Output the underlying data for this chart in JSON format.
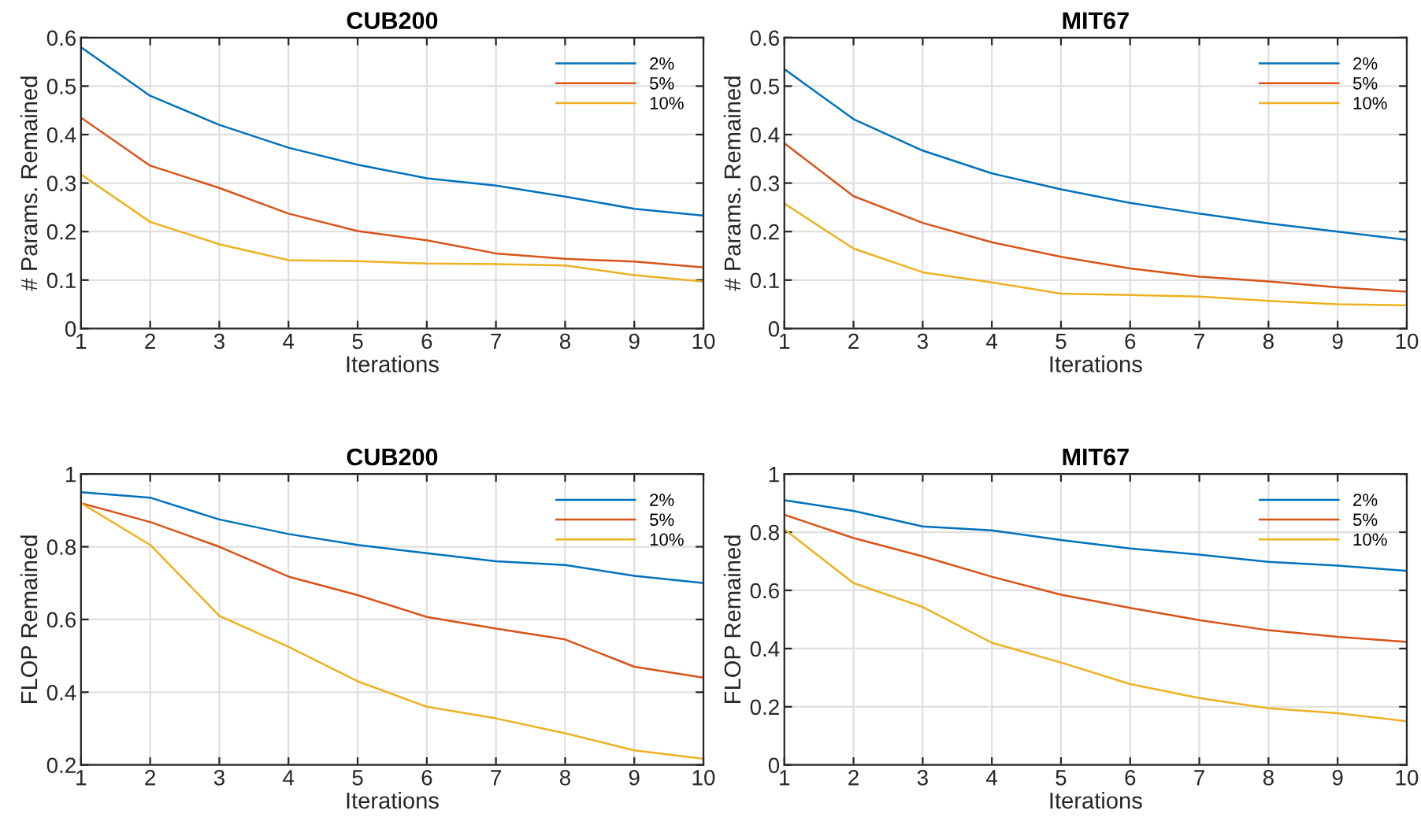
{
  "chart_data": [
    {
      "type": "line",
      "title": "CUB200",
      "xlabel": "Iterations",
      "ylabel": "# Params. Remained",
      "x": [
        1,
        2,
        3,
        4,
        5,
        6,
        7,
        8,
        9,
        10
      ],
      "xlim": [
        1,
        10
      ],
      "xticks": [
        1,
        2,
        3,
        4,
        5,
        6,
        7,
        8,
        9,
        10
      ],
      "ylim": [
        0,
        0.6
      ],
      "yticks": [
        0,
        0.1,
        0.2,
        0.3,
        0.4,
        0.5,
        0.6
      ],
      "grid": true,
      "legend": "top right",
      "series": [
        {
          "name": "2%",
          "color": "#0072bd",
          "values": [
            0.58,
            0.48,
            0.42,
            0.373,
            0.338,
            0.31,
            0.295,
            0.272,
            0.247,
            0.233
          ]
        },
        {
          "name": "5%",
          "color": "#d95319",
          "values": [
            0.435,
            0.336,
            0.29,
            0.237,
            0.201,
            0.182,
            0.155,
            0.144,
            0.138,
            0.126
          ]
        },
        {
          "name": "10%",
          "color": "#edb120",
          "values": [
            0.318,
            0.22,
            0.174,
            0.141,
            0.139,
            0.134,
            0.133,
            0.13,
            0.11,
            0.097
          ]
        }
      ]
    },
    {
      "type": "line",
      "title": "MIT67",
      "xlabel": "Iterations",
      "ylabel": "# Params. Remained",
      "x": [
        1,
        2,
        3,
        4,
        5,
        6,
        7,
        8,
        9,
        10
      ],
      "xlim": [
        1,
        10
      ],
      "xticks": [
        1,
        2,
        3,
        4,
        5,
        6,
        7,
        8,
        9,
        10
      ],
      "ylim": [
        0,
        0.6
      ],
      "yticks": [
        0,
        0.1,
        0.2,
        0.3,
        0.4,
        0.5,
        0.6
      ],
      "grid": true,
      "legend": "top right",
      "series": [
        {
          "name": "2%",
          "color": "#0072bd",
          "values": [
            0.535,
            0.432,
            0.367,
            0.32,
            0.287,
            0.259,
            0.237,
            0.217,
            0.2,
            0.183
          ]
        },
        {
          "name": "5%",
          "color": "#d95319",
          "values": [
            0.382,
            0.273,
            0.218,
            0.178,
            0.148,
            0.124,
            0.107,
            0.097,
            0.085,
            0.076
          ]
        },
        {
          "name": "10%",
          "color": "#edb120",
          "values": [
            0.258,
            0.165,
            0.116,
            0.095,
            0.072,
            0.069,
            0.066,
            0.057,
            0.05,
            0.048
          ]
        }
      ]
    },
    {
      "type": "line",
      "title": "CUB200",
      "xlabel": "Iterations",
      "ylabel": "FLOP Remained",
      "x": [
        1,
        2,
        3,
        4,
        5,
        6,
        7,
        8,
        9,
        10
      ],
      "xlim": [
        1,
        10
      ],
      "xticks": [
        1,
        2,
        3,
        4,
        5,
        6,
        7,
        8,
        9,
        10
      ],
      "ylim": [
        0.2,
        1
      ],
      "yticks": [
        0.2,
        0.4,
        0.6,
        0.8,
        1
      ],
      "grid": true,
      "legend": "top right",
      "series": [
        {
          "name": "2%",
          "color": "#0072bd",
          "values": [
            0.95,
            0.935,
            0.875,
            0.835,
            0.805,
            0.782,
            0.76,
            0.75,
            0.72,
            0.7
          ]
        },
        {
          "name": "5%",
          "color": "#d95319",
          "values": [
            0.92,
            0.868,
            0.8,
            0.718,
            0.667,
            0.607,
            0.575,
            0.545,
            0.47,
            0.44
          ]
        },
        {
          "name": "10%",
          "color": "#edb120",
          "values": [
            0.92,
            0.805,
            0.61,
            0.525,
            0.43,
            0.36,
            0.328,
            0.287,
            0.24,
            0.217
          ]
        }
      ]
    },
    {
      "type": "line",
      "title": "MIT67",
      "xlabel": "Iterations",
      "ylabel": "FLOP Remained",
      "x": [
        1,
        2,
        3,
        4,
        5,
        6,
        7,
        8,
        9,
        10
      ],
      "xlim": [
        1,
        10
      ],
      "xticks": [
        1,
        2,
        3,
        4,
        5,
        6,
        7,
        8,
        9,
        10
      ],
      "ylim": [
        0,
        1
      ],
      "yticks": [
        0,
        0.2,
        0.4,
        0.6,
        0.8,
        1
      ],
      "grid": true,
      "legend": "top right",
      "series": [
        {
          "name": "2%",
          "color": "#0072bd",
          "values": [
            0.91,
            0.873,
            0.82,
            0.806,
            0.773,
            0.744,
            0.723,
            0.698,
            0.685,
            0.667
          ]
        },
        {
          "name": "5%",
          "color": "#d95319",
          "values": [
            0.86,
            0.78,
            0.717,
            0.647,
            0.585,
            0.54,
            0.498,
            0.463,
            0.44,
            0.423
          ]
        },
        {
          "name": "10%",
          "color": "#edb120",
          "values": [
            0.81,
            0.625,
            0.543,
            0.42,
            0.352,
            0.278,
            0.23,
            0.195,
            0.178,
            0.15
          ]
        }
      ]
    }
  ]
}
